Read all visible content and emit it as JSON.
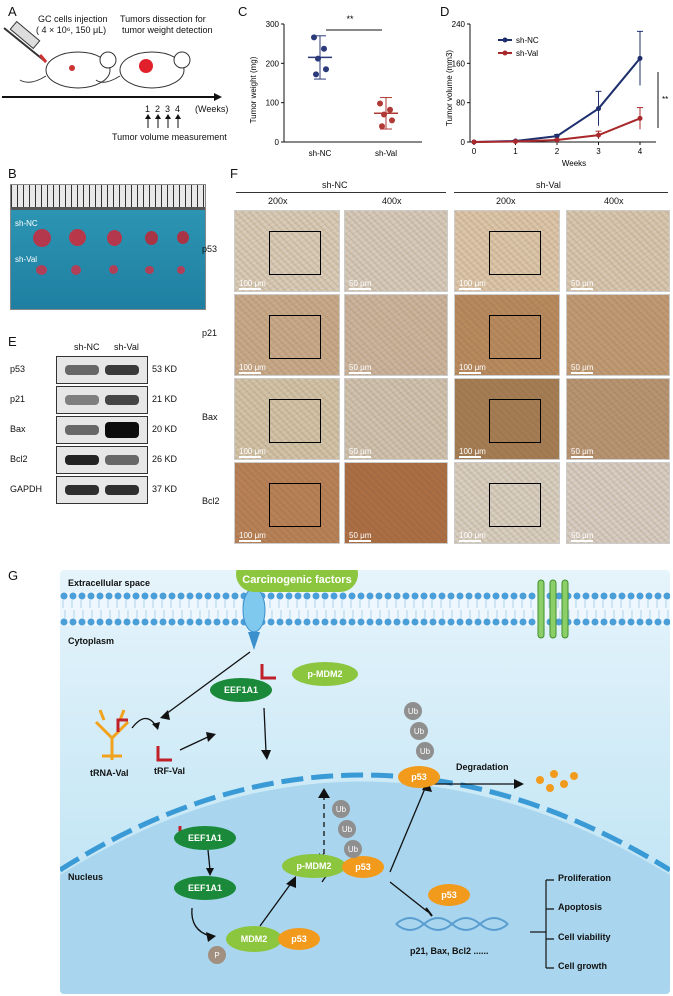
{
  "panels": {
    "A": "A",
    "B": "B",
    "C": "C",
    "D": "D",
    "E": "E",
    "F": "F",
    "G": "G"
  },
  "panelA": {
    "injection_label": "GC cells injection",
    "injection_dose": "( 4 × 10⁶, 150 μL)",
    "dissection_label_1": "Tumors dissection for",
    "dissection_label_2": "tumor weight detection",
    "weeks_label": "(Weeks)",
    "ticks": [
      "1",
      "2",
      "3",
      "4"
    ],
    "measure_label": "Tumor volume measurement"
  },
  "panelB": {
    "row1": "sh-NC",
    "row2": "sh-Val"
  },
  "panelE": {
    "cols": [
      "sh-NC",
      "sh-Val"
    ],
    "rows": [
      {
        "name": "p53",
        "kd": "53 KD",
        "nc": 0.55,
        "val": 0.75
      },
      {
        "name": "p21",
        "kd": "21 KD",
        "nc": 0.45,
        "val": 0.7
      },
      {
        "name": "Bax",
        "kd": "20 KD",
        "nc": 0.55,
        "val": 0.95
      },
      {
        "name": "Bcl2",
        "kd": "26 KD",
        "nc": 0.85,
        "val": 0.55
      },
      {
        "name": "GAPDH",
        "kd": "37 KD",
        "nc": 0.8,
        "val": 0.8
      }
    ]
  },
  "panelF": {
    "groups": [
      "sh-NC",
      "sh-Val"
    ],
    "mags": [
      "200x",
      "400x",
      "200x",
      "400x"
    ],
    "rows": [
      "p53",
      "p21",
      "Bax",
      "Bcl2"
    ],
    "scale_200": "100 μm",
    "scale_400": "50 μm"
  },
  "chart_data": [
    {
      "type": "scatter",
      "panel": "C",
      "ylabel": "Tumor weight (mg)",
      "categories": [
        "sh-NC",
        "sh-Val"
      ],
      "yticks": [
        "0",
        "100",
        "200",
        "300"
      ],
      "ylim": [
        0,
        300
      ],
      "significance": "**",
      "series": [
        {
          "name": "sh-NC",
          "color": "#2b3a7a",
          "values": [
            266,
            237,
            212,
            185,
            172
          ],
          "mean": 215,
          "sd": 55
        },
        {
          "name": "sh-Val",
          "color": "#b03a35",
          "values": [
            98,
            82,
            70,
            55,
            40
          ],
          "mean": 73,
          "sd": 40
        }
      ]
    },
    {
      "type": "line",
      "panel": "D",
      "xlabel": "Weeks",
      "ylabel": "Tumor volume (mm3)",
      "x": [
        0,
        1,
        2,
        3,
        4
      ],
      "yticks": [
        "0",
        "80",
        "160",
        "240"
      ],
      "ylim": [
        0,
        240
      ],
      "significance": "**",
      "series": [
        {
          "name": "sh-NC",
          "color": "#1f2f6e",
          "values": [
            0,
            2,
            12,
            68,
            170
          ],
          "err": [
            0,
            1,
            3,
            35,
            55
          ]
        },
        {
          "name": "sh-Val",
          "color": "#a8282b",
          "values": [
            0,
            1,
            4,
            14,
            48
          ],
          "err": [
            0,
            1,
            2,
            8,
            22
          ]
        }
      ]
    }
  ],
  "panelG": {
    "carcinogenic": "Carcinogenic factors",
    "extracellular": "Extracellular space",
    "cytoplasm": "Cytoplasm",
    "nucleus": "Nucleus",
    "trna": "tRNA-Val",
    "trf": "tRF-Val",
    "eef_top": "EEF1A1",
    "eef_mid": "EEF1A1",
    "eef_low": "EEF1A1",
    "pmdm2_cyto": "p-MDM2",
    "pmdm2_nuc": "p-MDM2",
    "mdm2": "MDM2",
    "p53": "p53",
    "p": "P",
    "ub": "Ub",
    "degradation": "Degradation",
    "genes": "p21, Bax, Bcl2 ......",
    "outcomes": [
      "Proliferation",
      "Apoptosis",
      "Cell viability",
      "Cell growth"
    ]
  }
}
